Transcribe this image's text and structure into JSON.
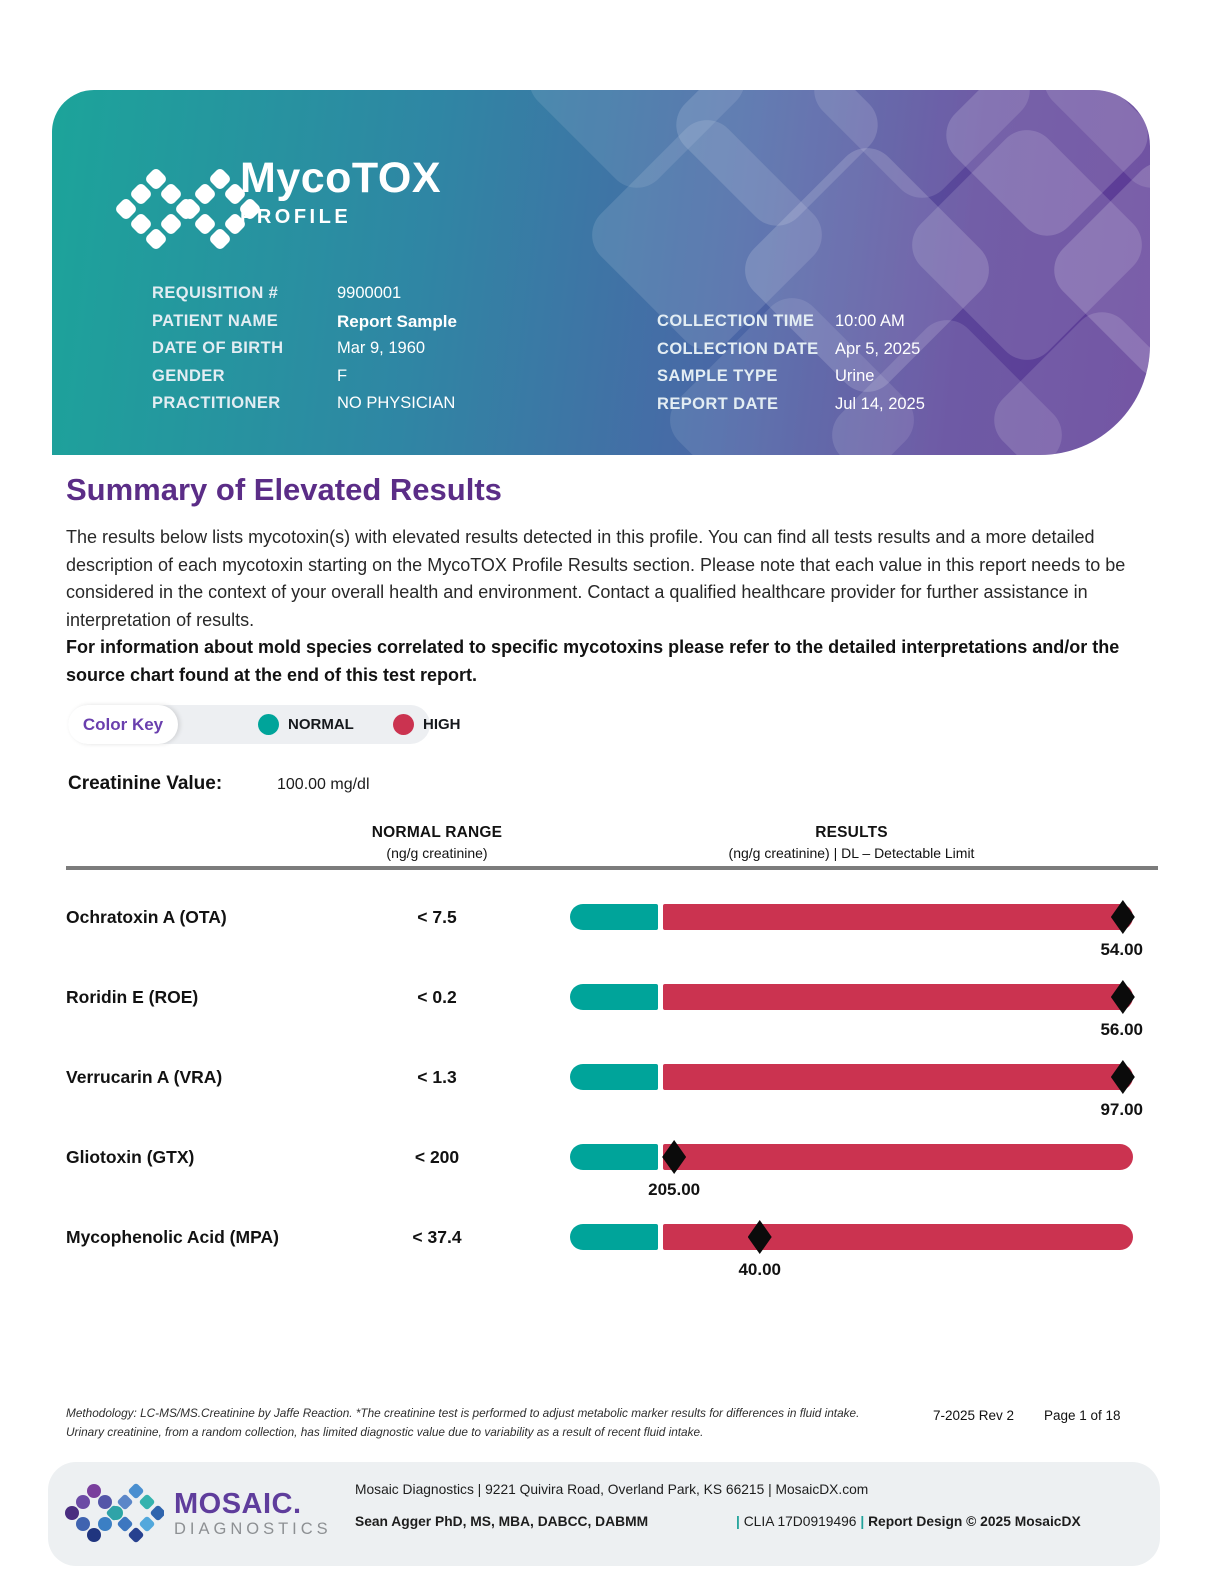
{
  "brand": {
    "product": "MycoTOX",
    "product_sub": "PROFILE",
    "accent_purple": "#5b2d87",
    "teal": "#00a49a",
    "red": "#cb3350"
  },
  "header": {
    "fields_left": [
      {
        "label": "REQUISITION #",
        "value": "9900001"
      },
      {
        "label": "PATIENT NAME",
        "value": "Report Sample"
      },
      {
        "label": "DATE OF BIRTH",
        "value": "Mar 9, 1960"
      },
      {
        "label": "GENDER",
        "value": "F"
      },
      {
        "label": "PRACTITIONER",
        "value": "NO PHYSICIAN"
      }
    ],
    "fields_right": [
      {
        "label": "COLLECTION TIME",
        "value": "10:00 AM"
      },
      {
        "label": "COLLECTION DATE",
        "value": "Apr 5, 2025"
      },
      {
        "label": "SAMPLE TYPE",
        "value": "Urine"
      },
      {
        "label": "REPORT DATE",
        "value": "Jul 14, 2025"
      }
    ]
  },
  "summary": {
    "title": "Summary of Elevated Results",
    "paragraph": "The results below lists mycotoxin(s) with elevated results detected in this profile. You can find all tests results and a more detailed description of each mycotoxin starting on the MycoTOX Profile Results section. Please note that each value in this report needs to be considered in the context of your overall health and environment. Contact a qualified healthcare provider for further assistance in interpretation of results.",
    "paragraph_bold": "For information about mold species correlated to specific mycotoxins please refer to the detailed interpretations and/or the source chart found at the end of this test report."
  },
  "color_key": {
    "label": "Color Key",
    "normal_label": "NORMAL",
    "high_label": "HIGH",
    "normal_color": "#00a49a",
    "high_color": "#cb3350"
  },
  "creatinine": {
    "label": "Creatinine Value:",
    "value": "100.00 mg/dl"
  },
  "chart_data": {
    "type": "bar",
    "col_range_header": "NORMAL RANGE",
    "col_range_sub": "(ng/g creatinine)",
    "col_results_header": "RESULTS",
    "col_results_sub": "(ng/g creatinine) | DL – Detectable Limit",
    "units": "ng/g creatinine",
    "normal_segment_pct": 15.6,
    "rows": [
      {
        "analyte": "Ochratoxin A (OTA)",
        "range_display": "< 7.5",
        "range_limit": 7.5,
        "result": 54.0,
        "result_display": "54.00",
        "status": "high",
        "marker_pct": 98.2,
        "value_align": "right"
      },
      {
        "analyte": "Roridin E (ROE)",
        "range_display": "< 0.2",
        "range_limit": 0.2,
        "result": 56.0,
        "result_display": "56.00",
        "status": "high",
        "marker_pct": 98.2,
        "value_align": "right"
      },
      {
        "analyte": "Verrucarin A (VRA)",
        "range_display": "< 1.3",
        "range_limit": 1.3,
        "result": 97.0,
        "result_display": "97.00",
        "status": "high",
        "marker_pct": 98.2,
        "value_align": "right"
      },
      {
        "analyte": "Gliotoxin (GTX)",
        "range_display": "< 200",
        "range_limit": 200,
        "result": 205.0,
        "result_display": "205.00",
        "status": "high",
        "marker_pct": 18.5,
        "value_align": "marker"
      },
      {
        "analyte": "Mycophenolic Acid (MPA)",
        "range_display": "< 37.4",
        "range_limit": 37.4,
        "result": 40.0,
        "result_display": "40.00",
        "status": "high",
        "marker_pct": 33.7,
        "value_align": "marker"
      }
    ]
  },
  "footer": {
    "methodology": "Methodology: LC-MS/MS.Creatinine by Jaffe Reaction. *The creatinine test is performed to adjust metabolic marker results for differences in fluid intake. Urinary creatinine, from a random collection, has limited diagnostic value due to variability as a result of recent fluid intake.",
    "revision": "7-2025 Rev 2",
    "page": "Page 1 of 18",
    "org_name": "MOSAIC.",
    "org_sub": "DIAGNOSTICS",
    "address": "Mosaic Diagnostics | 9221 Quivira Road, Overland Park, KS 66215 | MosaicDX.com",
    "director": "Sean Agger PhD, MS, MBA, DABCC, DABMM",
    "pipe": "|",
    "clia": "CLIA 17D0919496",
    "copyright": "Report Design © 2025 MosaicDX"
  }
}
